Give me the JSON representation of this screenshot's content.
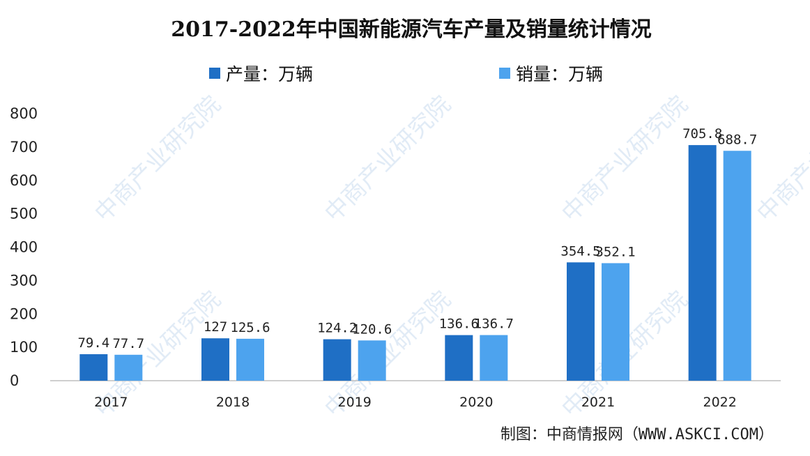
{
  "colors": {
    "production": "#1f6fc5",
    "sales": "#4da3ee",
    "watermark": "#c9dcef",
    "axis": "#bfbfbf"
  },
  "watermark": "中商产业研究院",
  "source": "制图：中商情报网（WWW.ASKCI.COM）",
  "chart_data": {
    "type": "bar",
    "title": "2017-2022年中国新能源汽车产量及销量统计情况",
    "categories": [
      "2017",
      "2018",
      "2019",
      "2020",
      "2021",
      "2022"
    ],
    "series": [
      {
        "name": "产量：万辆",
        "values": [
          79.4,
          127,
          124.2,
          136.6,
          354.5,
          705.8
        ]
      },
      {
        "name": "销量：万辆",
        "values": [
          77.7,
          125.6,
          120.6,
          136.7,
          352.1,
          688.7
        ]
      }
    ],
    "data_labels": [
      [
        "79.4",
        "127",
        "124.2",
        "136.6",
        "354.5",
        "705.8"
      ],
      [
        "77.7",
        "125.6",
        "120.6",
        "136.7",
        "352.1",
        "688.7"
      ]
    ],
    "ylim": [
      0,
      800
    ],
    "yticks": [
      0,
      100,
      200,
      300,
      400,
      500,
      600,
      700,
      800
    ],
    "grid": false,
    "legend_position": "top",
    "xlabel": "",
    "ylabel": ""
  }
}
